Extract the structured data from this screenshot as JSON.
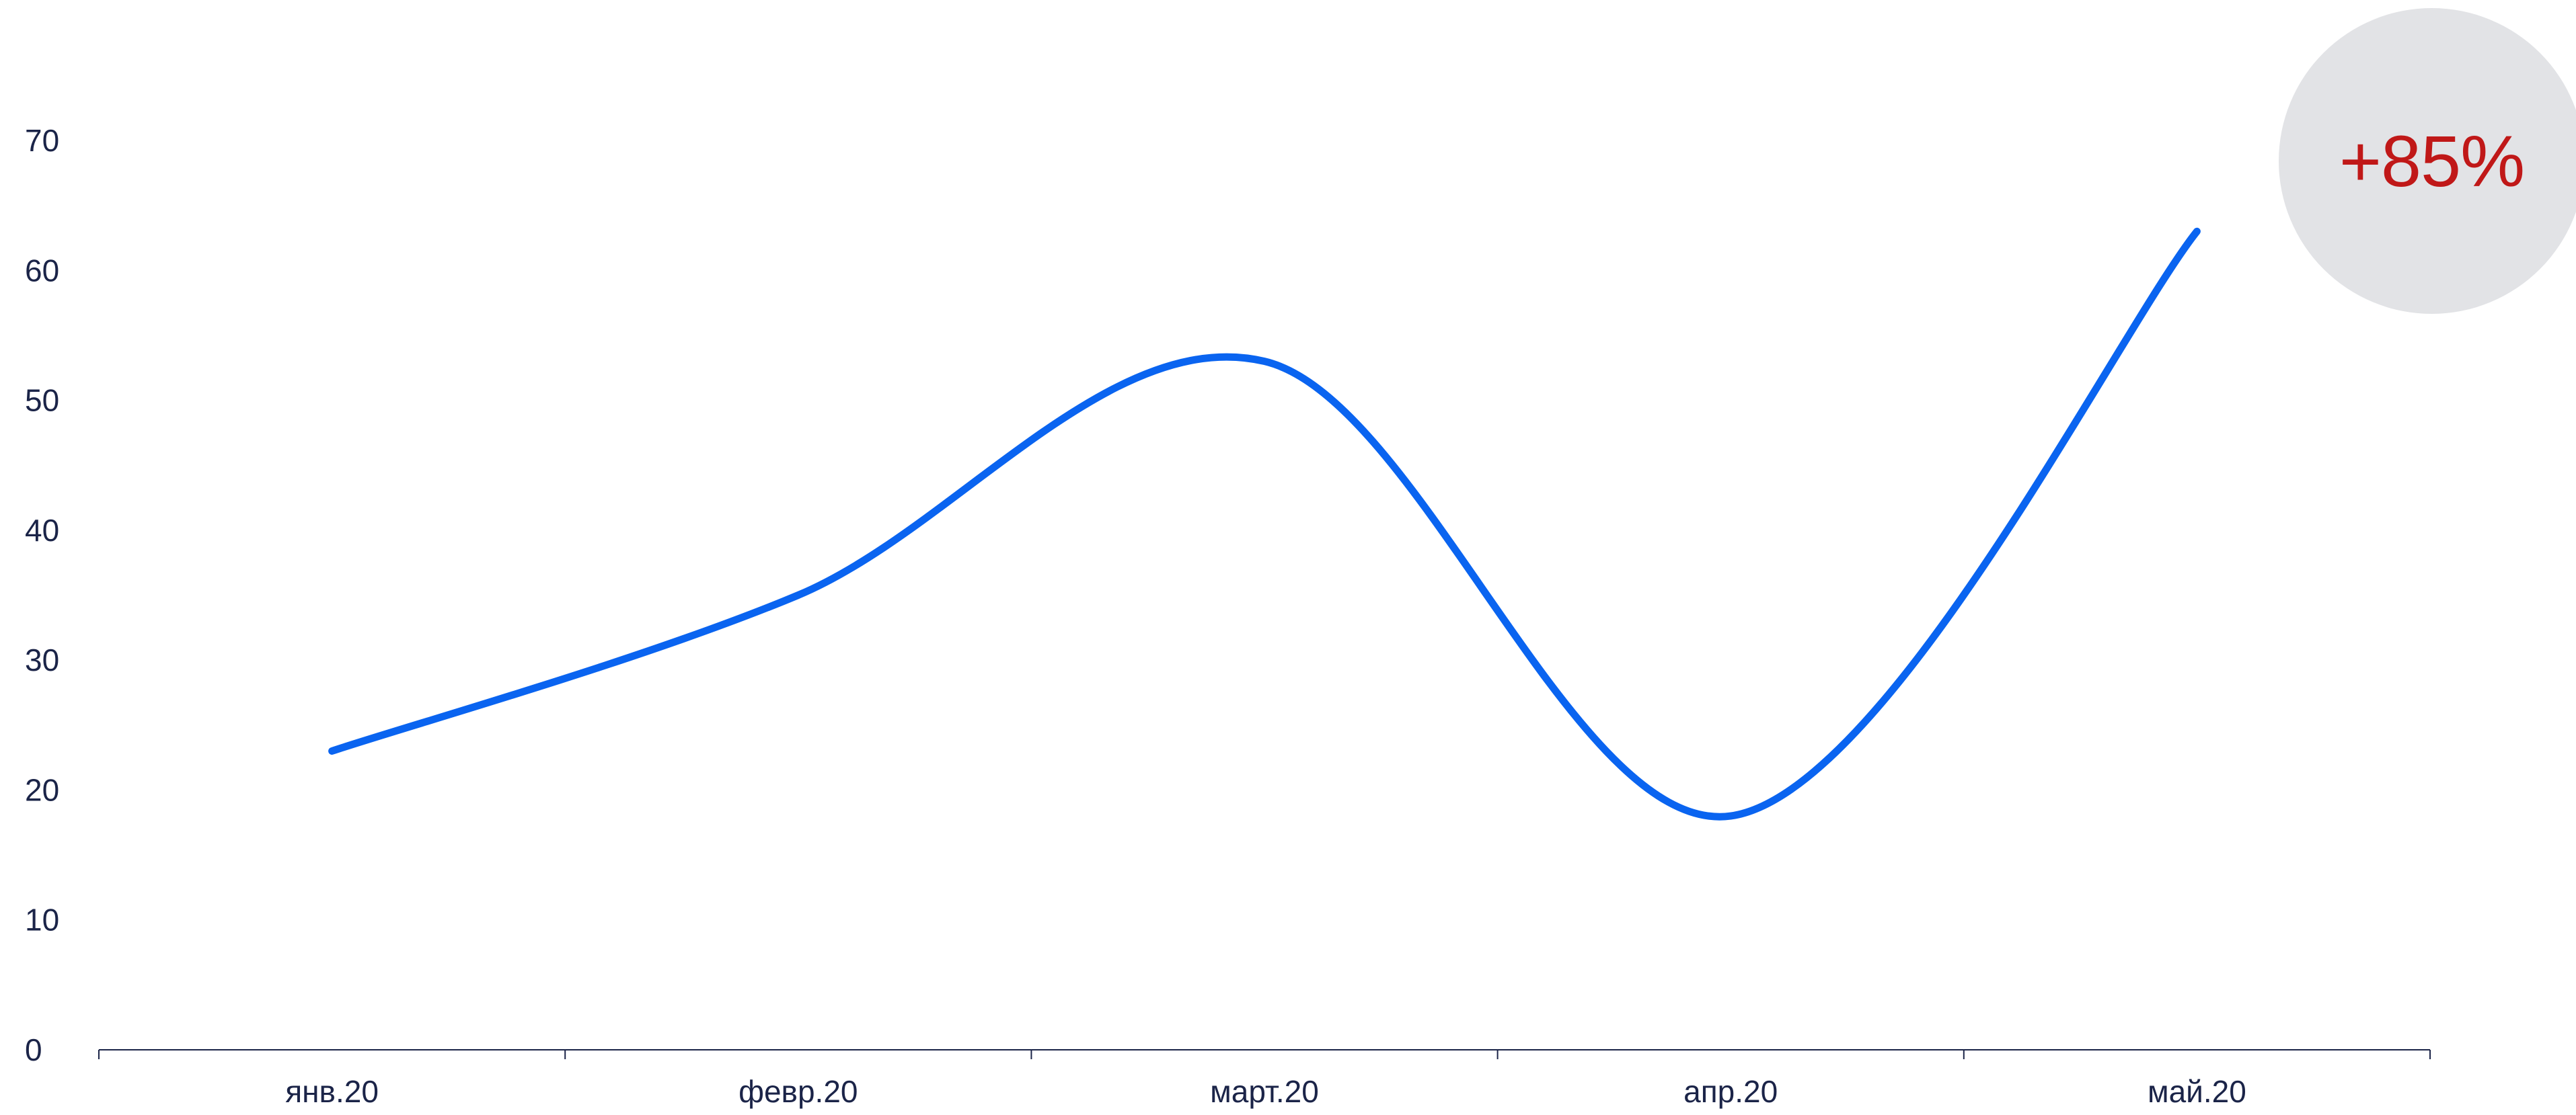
{
  "chart_data": {
    "type": "line",
    "title": "",
    "xlabel": "",
    "ylabel": "",
    "categories": [
      "янв.20",
      "февр.20",
      "март.20",
      "апр.20",
      "май.20"
    ],
    "series": [
      {
        "values": [
          23,
          35,
          53,
          18,
          63
        ]
      }
    ],
    "ylim": [
      0,
      70
    ],
    "yticks": [
      "0",
      "10",
      "20",
      "30",
      "40",
      "50",
      "60",
      "70"
    ],
    "grid": false,
    "smooth": true,
    "colors": {
      "line": "#0a64f0",
      "axis": "#1b2448",
      "tick_text": "#1b2448",
      "badge_bg": "#e2e3e6",
      "badge_text": "#c01818"
    }
  },
  "badge": {
    "value": "+85%"
  }
}
